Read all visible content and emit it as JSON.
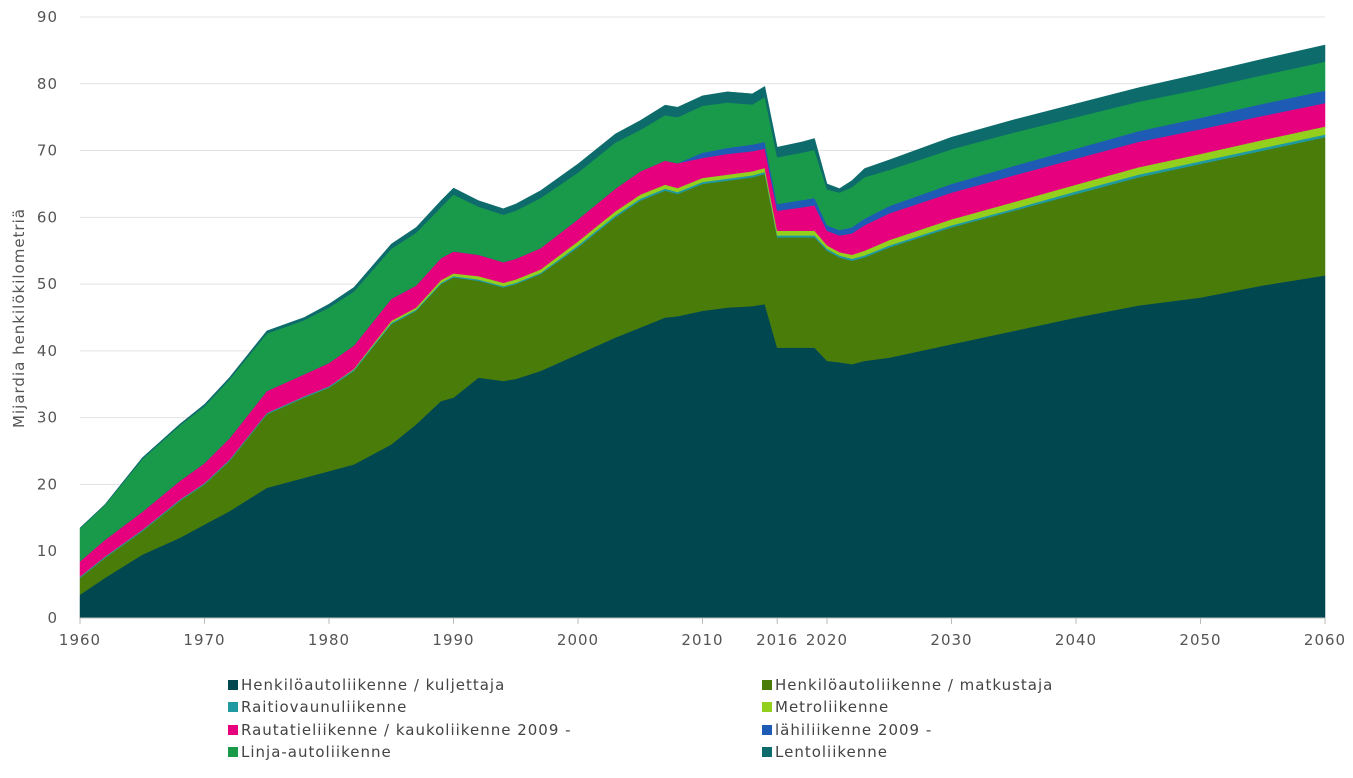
{
  "chart_data": {
    "type": "stacked_area",
    "y_label": "Mijardia henkilökilometriä",
    "x": [
      1960,
      1962,
      1965,
      1968,
      1970,
      1972,
      1975,
      1978,
      1980,
      1982,
      1985,
      1987,
      1989,
      1990,
      1992,
      1994,
      1995,
      1997,
      2000,
      2003,
      2005,
      2007,
      2008,
      2010,
      2012,
      2014,
      2015,
      2016,
      2018,
      2019,
      2020,
      2021,
      2022,
      2023,
      2025,
      2030,
      2035,
      2040,
      2045,
      2050,
      2055,
      2060
    ],
    "xlim": [
      1960,
      2060
    ],
    "xticks": [
      1960,
      1970,
      1980,
      1990,
      2000,
      2010,
      2016,
      2020,
      2030,
      2040,
      2050,
      2060
    ],
    "ylim": [
      0,
      90
    ],
    "yticks": [
      0,
      10,
      20,
      30,
      40,
      50,
      60,
      70,
      80,
      90
    ],
    "grid": true,
    "series": [
      {
        "name": "Henkilöautoliikenne / kuljettaja",
        "color": "#00474f",
        "values": [
          3.5,
          6,
          9.5,
          12,
          14,
          16,
          19.5,
          21,
          22,
          23,
          26,
          29,
          32.5,
          33,
          36,
          35.5,
          35.8,
          37,
          39.5,
          42,
          43.5,
          45,
          45.2,
          46,
          46.5,
          46.7,
          47,
          40.5,
          40.5,
          40.5,
          38.5,
          38.3,
          38,
          38.5,
          39,
          41,
          43,
          45,
          46.8,
          48,
          49.8,
          51.3
        ]
      },
      {
        "name": "Henkilöautoliikenne / matkustaja",
        "color": "#4a7c0a",
        "values": [
          2.5,
          3,
          3.5,
          5.5,
          6,
          7.5,
          11,
          12,
          12.5,
          14,
          18,
          17,
          17.5,
          18,
          14.5,
          14,
          14.2,
          14.5,
          16,
          18,
          19,
          19,
          18.3,
          19,
          19,
          19.3,
          19.5,
          16.5,
          16.5,
          16.5,
          16.5,
          15.7,
          15.5,
          15.5,
          16.5,
          17.5,
          18,
          18.5,
          19.2,
          20,
          20.2,
          20.7
        ]
      },
      {
        "name": "Raitiovaunuliikenne",
        "color": "#1f9aa0",
        "values": [
          0.2,
          0.2,
          0.2,
          0.2,
          0.2,
          0.2,
          0.2,
          0.2,
          0.2,
          0.2,
          0.2,
          0.2,
          0.2,
          0.2,
          0.2,
          0.2,
          0.2,
          0.2,
          0.3,
          0.3,
          0.3,
          0.3,
          0.3,
          0.3,
          0.3,
          0.3,
          0.3,
          0.3,
          0.3,
          0.3,
          0.3,
          0.3,
          0.3,
          0.3,
          0.3,
          0.3,
          0.3,
          0.4,
          0.4,
          0.4,
          0.4,
          0.4
        ]
      },
      {
        "name": "Metroliikenne",
        "color": "#93d01e",
        "values": [
          0,
          0,
          0,
          0,
          0,
          0,
          0,
          0,
          0,
          0.1,
          0.3,
          0.3,
          0.4,
          0.4,
          0.5,
          0.5,
          0.5,
          0.5,
          0.6,
          0.6,
          0.6,
          0.6,
          0.6,
          0.6,
          0.6,
          0.6,
          0.6,
          0.7,
          0.7,
          0.7,
          0.5,
          0.5,
          0.6,
          0.7,
          0.8,
          0.9,
          1,
          1,
          1.1,
          1.1,
          1.2,
          1.2
        ]
      },
      {
        "name": "Rautatieliikenne / kaukoliikenne 2009 -",
        "color": "#e6007e",
        "values": [
          2.3,
          2.5,
          2.7,
          2.8,
          3,
          3.2,
          3.3,
          3.3,
          3.5,
          3.5,
          3.3,
          3.3,
          3.3,
          3.3,
          3.2,
          3.1,
          3.1,
          3.2,
          3.3,
          3.4,
          3.5,
          3.6,
          3.7,
          3,
          3.1,
          3,
          2.9,
          3,
          3.5,
          3.8,
          2.2,
          2.5,
          3.2,
          3.8,
          4,
          4,
          4,
          3.9,
          3.8,
          3.7,
          3.6,
          3.5
        ]
      },
      {
        "name": "lähiliikenne 2009 -",
        "color": "#1e5bb5",
        "values": [
          0,
          0,
          0,
          0,
          0,
          0,
          0,
          0,
          0,
          0,
          0,
          0,
          0,
          0,
          0,
          0,
          0,
          0,
          0,
          0,
          0,
          0,
          0,
          0.8,
          0.9,
          1,
          1,
          1,
          1.1,
          1.1,
          0.8,
          0.8,
          0.9,
          1,
          1.1,
          1.3,
          1.4,
          1.5,
          1.6,
          1.7,
          1.8,
          1.9
        ]
      },
      {
        "name": "Linja-autoliikenne",
        "color": "#199a4a",
        "values": [
          4.9,
          5.2,
          7.9,
          8.3,
          8.5,
          8.8,
          8.6,
          8.1,
          8.3,
          8.1,
          7.5,
          7.9,
          7.6,
          8.5,
          7.2,
          7.1,
          7.2,
          7.5,
          7,
          6.9,
          6.2,
          6.8,
          6.9,
          7,
          6.8,
          6,
          6.7,
          7,
          7.1,
          7.2,
          5.4,
          5.6,
          6,
          6.2,
          5.4,
          5.2,
          5,
          4.7,
          4.4,
          4.3,
          4.3,
          4.3
        ]
      },
      {
        "name": "Lentoliikenne",
        "color": "#0d6b6b",
        "values": [
          0.1,
          0.1,
          0.2,
          0.2,
          0.3,
          0.3,
          0.4,
          0.4,
          0.5,
          0.6,
          0.7,
          0.8,
          1,
          1,
          0.9,
          0.9,
          1,
          1.1,
          1.3,
          1.3,
          1.4,
          1.5,
          1.5,
          1.5,
          1.6,
          1.6,
          1.6,
          1.5,
          1.6,
          1.7,
          0.8,
          0.6,
          1,
          1.3,
          1.5,
          1.8,
          1.9,
          2,
          2.1,
          2.3,
          2.4,
          2.5
        ]
      }
    ]
  }
}
